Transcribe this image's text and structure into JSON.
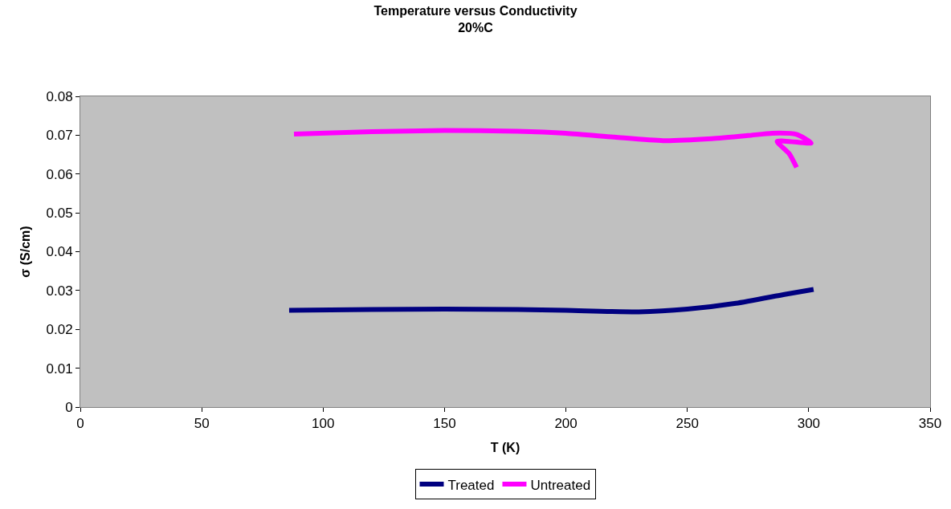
{
  "chart_data": {
    "type": "line",
    "title": "Temperature versus Conductivity",
    "subtitle": "20%C",
    "xlabel": "T (K)",
    "ylabel": "σ (S/cm)",
    "xlim": [
      0,
      350
    ],
    "xticks": [
      0,
      50,
      100,
      150,
      200,
      250,
      300,
      350
    ],
    "ylim": [
      0,
      0.08
    ],
    "yticks": [
      0,
      0.01,
      0.02,
      0.03,
      0.04,
      0.05,
      0.06,
      0.07,
      0.08
    ],
    "grid": false,
    "legend": "bottom",
    "marker": "none",
    "line_style": "solid",
    "series": [
      {
        "name": "Treated",
        "color": "#000080",
        "x": [
          86,
          120,
          150,
          180,
          200,
          230,
          250,
          270,
          290,
          302
        ],
        "values": [
          0.0249,
          0.0251,
          0.0252,
          0.0251,
          0.0249,
          0.0245,
          0.0252,
          0.0267,
          0.029,
          0.0303
        ]
      },
      {
        "name": "Untreated",
        "color": "#ff00ff",
        "x": [
          88,
          120,
          150,
          180,
          200,
          220,
          240,
          260,
          275,
          285,
          295,
          301,
          287,
          292,
          295
        ],
        "values": [
          0.0703,
          0.0709,
          0.0712,
          0.071,
          0.0705,
          0.0695,
          0.0686,
          0.0691,
          0.0699,
          0.0705,
          0.0702,
          0.068,
          0.0684,
          0.0652,
          0.0617
        ]
      }
    ]
  }
}
